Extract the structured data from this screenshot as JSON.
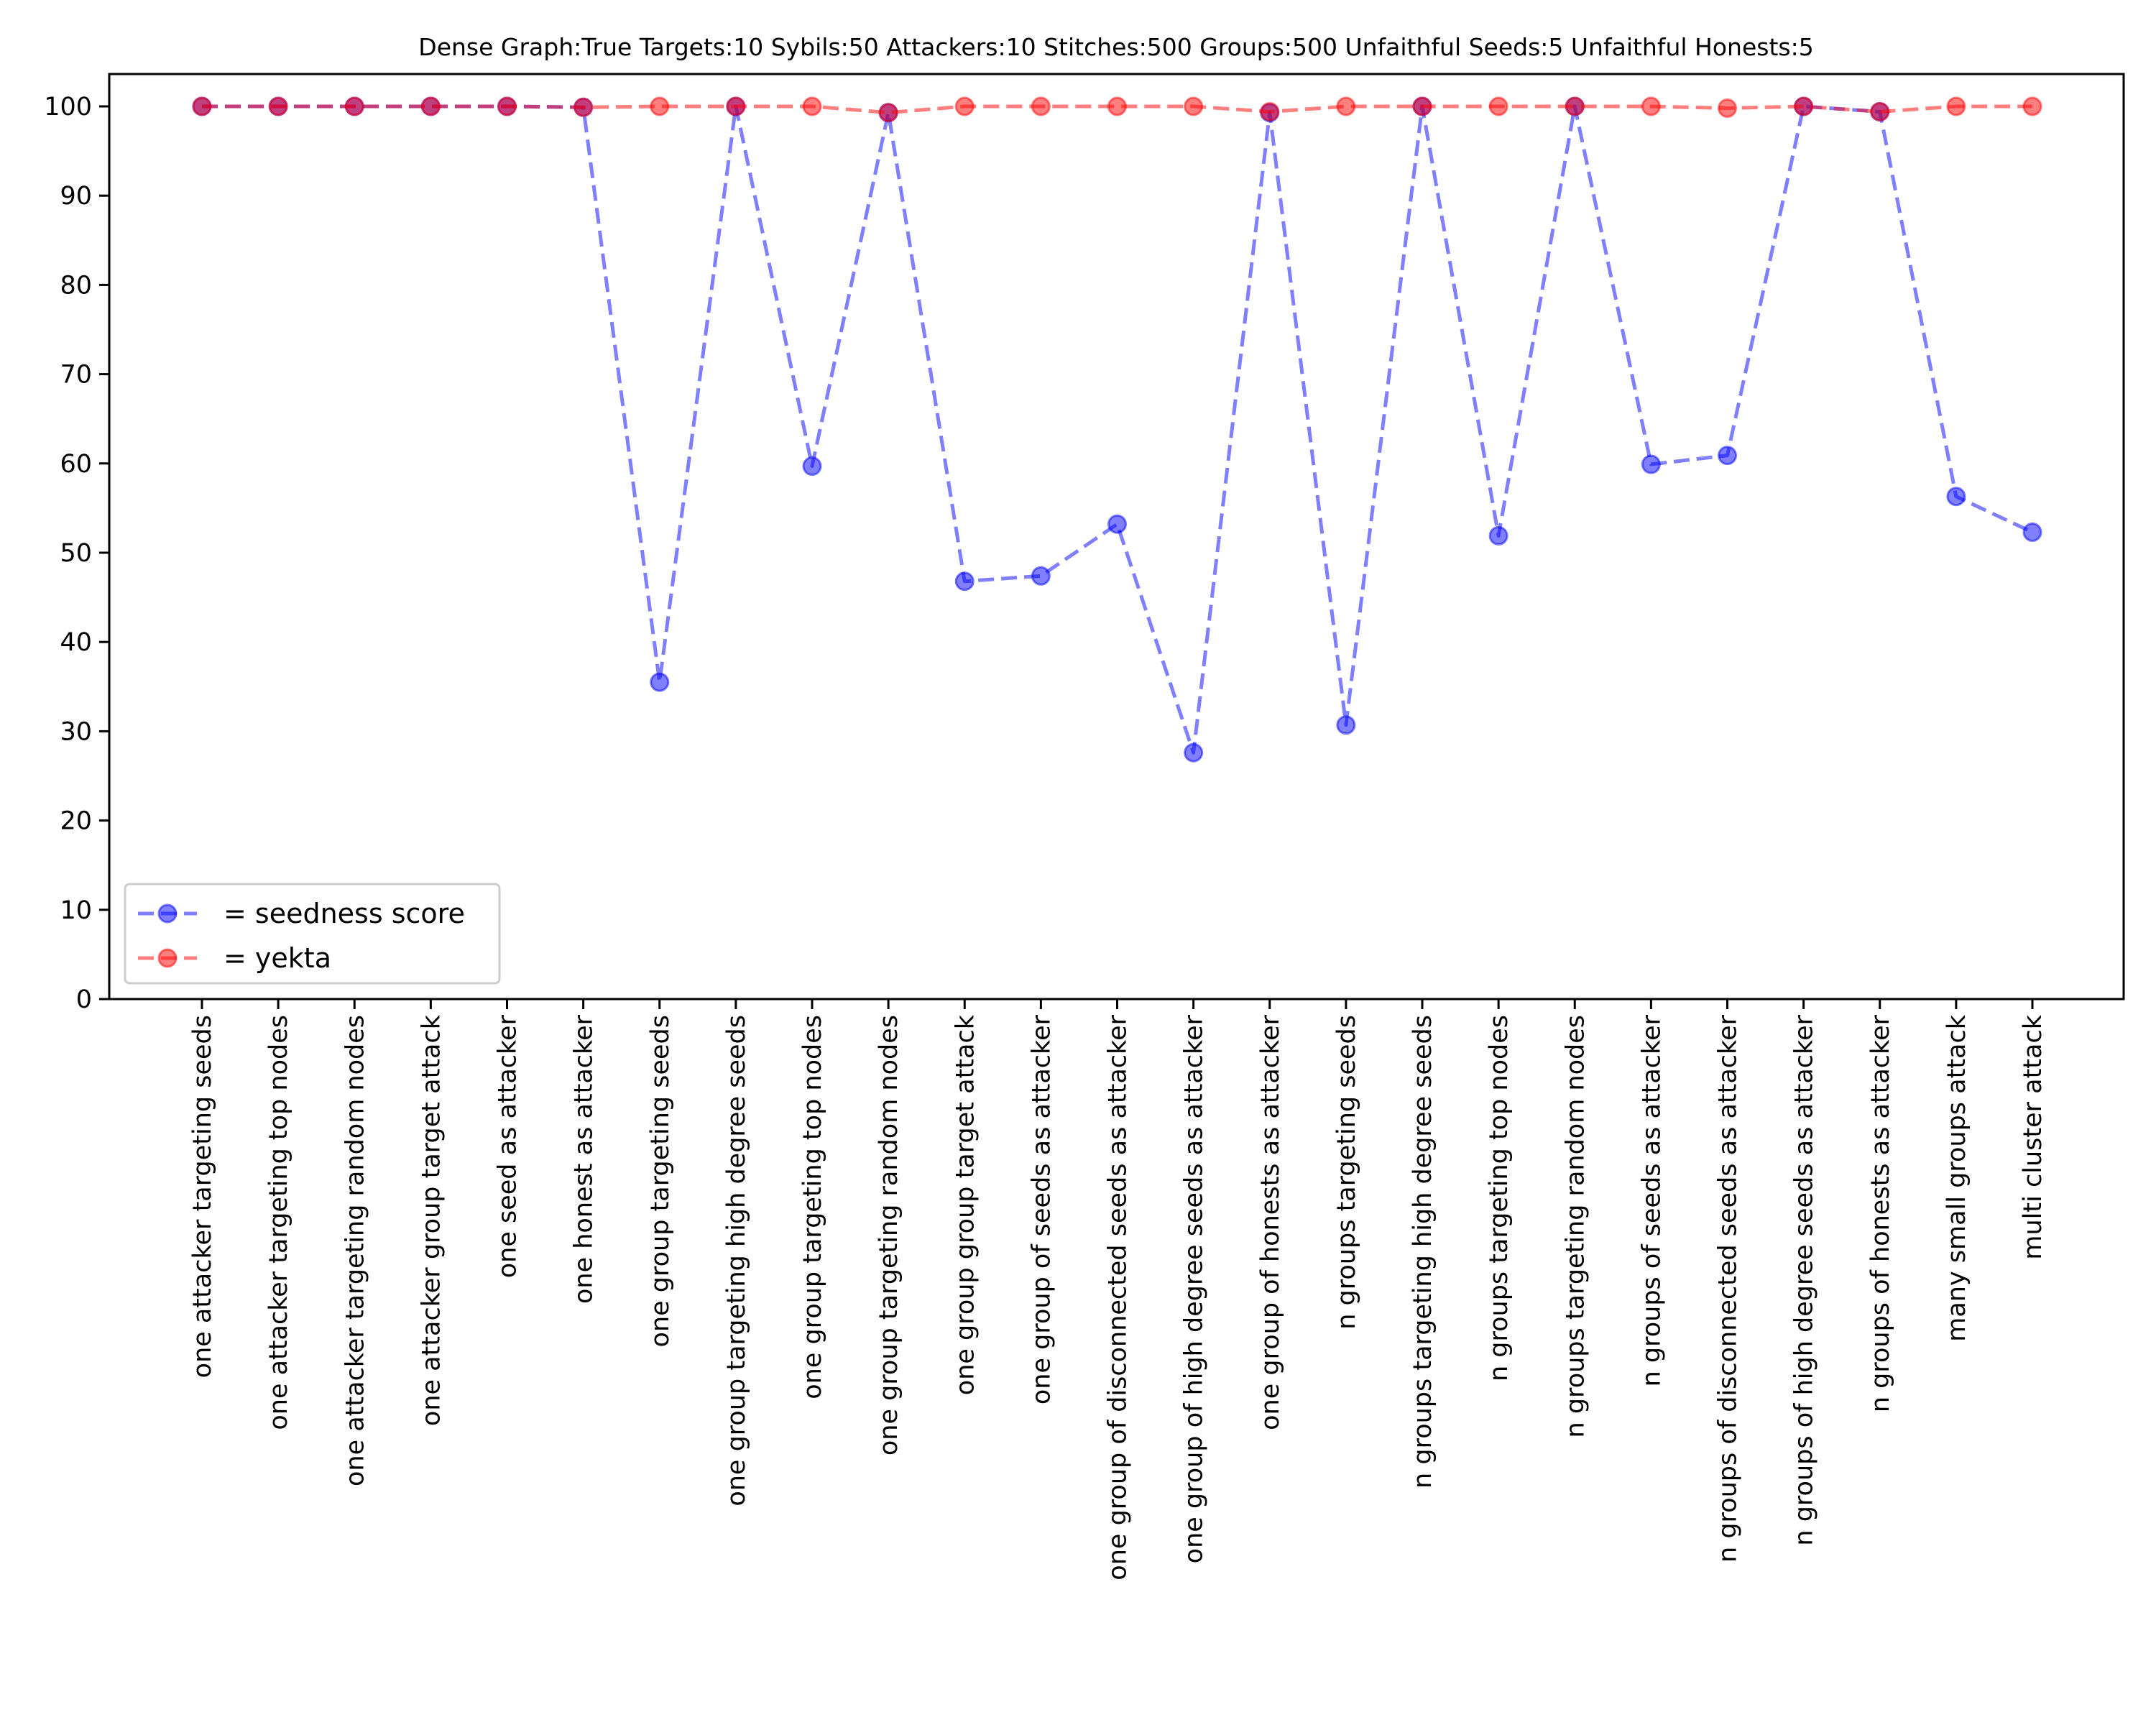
{
  "chart_data": {
    "type": "line",
    "title": "Dense Graph:True Targets:10 Sybils:50 Attackers:10 Stitches:500 Groups:500 Unfaithful Seeds:5 Unfaithful Honests:5",
    "xlabel": "",
    "ylabel": "",
    "ylim": [
      0,
      100
    ],
    "yticks": [
      0,
      10,
      20,
      30,
      40,
      50,
      60,
      70,
      80,
      90,
      100
    ],
    "grid": false,
    "legend_position": "lower left",
    "categories": [
      "one attacker targeting seeds",
      "one attacker targeting top nodes",
      "one attacker targeting random nodes",
      "one attacker group target attack",
      "one seed as attacker",
      "one honest as attacker",
      "one group targeting seeds",
      "one group targeting high degree seeds",
      "one group targeting top nodes",
      "one group targeting random nodes",
      "one group group target attack",
      "one group of seeds as attacker",
      "one group of disconnected seeds as attacker",
      "one group of high degree seeds as attacker",
      "one group of honests as attacker",
      "n groups targeting seeds",
      "n groups targeting high degree seeds",
      "n groups targeting top nodes",
      "n groups targeting random nodes",
      "n groups of seeds as attacker",
      "n groups of disconnected seeds as attacker",
      "n groups of high degree seeds as attacker",
      "n groups of honests as attacker",
      "many small groups attack",
      "multi cluster attack"
    ],
    "series": [
      {
        "name": "= seedness score",
        "color": "#0000ff",
        "style": "dashed, circle markers, alpha 0.5",
        "values": [
          100,
          100,
          100,
          100,
          100,
          99.9,
          35.5,
          100,
          59.7,
          99.3,
          46.8,
          47.4,
          53.2,
          27.6,
          99.3,
          30.7,
          100,
          51.9,
          100,
          59.9,
          60.9,
          100,
          99.4,
          56.3,
          52.3
        ]
      },
      {
        "name": "= yekta",
        "color": "#ff0000",
        "style": "dashed, circle markers, alpha 0.5",
        "values": [
          100,
          100,
          100,
          100,
          100,
          99.9,
          100,
          100,
          100,
          99.3,
          100,
          100,
          100,
          100,
          99.4,
          100,
          100,
          100,
          100,
          100,
          99.8,
          100,
          99.4,
          100,
          100
        ]
      }
    ]
  },
  "legend": {
    "items": [
      {
        "label": "= seedness score",
        "color": "#0000ff"
      },
      {
        "label": "= yekta",
        "color": "#ff0000"
      }
    ]
  }
}
